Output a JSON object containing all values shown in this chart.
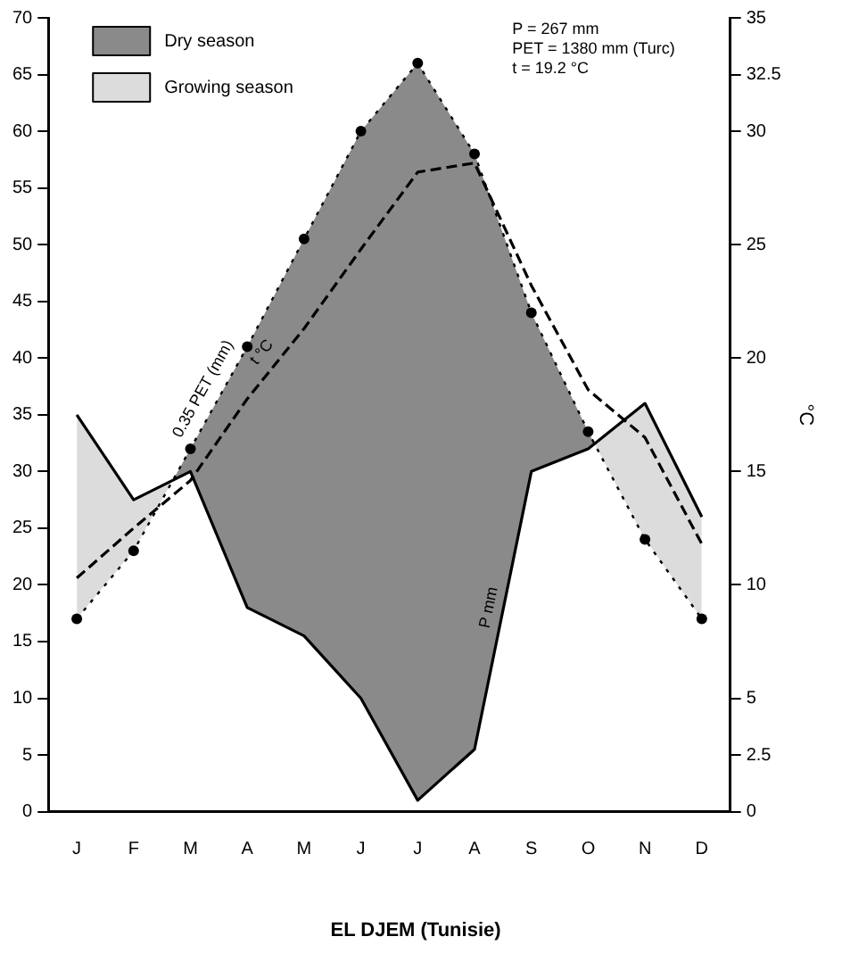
{
  "chart_data": {
    "type": "line",
    "title": "EL DJEM (Tunisie)",
    "y2label": "°C",
    "categories": [
      "J",
      "F",
      "M",
      "A",
      "M",
      "J",
      "J",
      "A",
      "S",
      "O",
      "N",
      "D"
    ],
    "series": [
      {
        "name": "P mm",
        "color": "#000000",
        "values": [
          35,
          27.5,
          30,
          18,
          15.5,
          10,
          1,
          5.5,
          30,
          32,
          36,
          26
        ],
        "line_style": "solid",
        "marker": "none"
      },
      {
        "name": "t °C",
        "color": "#000000",
        "axis": "y2",
        "values": [
          10.3,
          12.5,
          14.6,
          18.2,
          21.3,
          24.8,
          28.2,
          28.6,
          23.2,
          18.6,
          16.5,
          11.8
        ],
        "line_style": "dashed",
        "marker": "none"
      },
      {
        "name": "0.35 PET (mm)",
        "color": "#000000",
        "values": [
          17,
          23,
          32,
          41,
          50.5,
          60,
          66,
          58,
          44,
          33.5,
          24,
          17
        ],
        "line_style": "dotted",
        "marker": "circle"
      },
      {
        "name": "Dry season",
        "type": "area",
        "color": "#8a8a8a",
        "values": [
          null,
          null,
          null,
          null,
          null,
          null,
          null,
          null,
          null,
          null,
          null,
          null
        ],
        "lower": [
          null,
          27.5,
          30,
          18,
          15.5,
          10,
          1,
          5.5,
          30,
          32,
          36,
          null
        ],
        "upper": [
          null,
          23,
          32,
          41,
          50.5,
          60,
          66,
          58,
          44,
          33.5,
          24,
          null
        ]
      },
      {
        "name": "Growing season",
        "type": "area",
        "color": "#dcdcdc",
        "values": [
          null,
          null,
          null,
          null,
          null,
          null,
          null,
          null,
          null,
          null,
          null,
          null
        ],
        "lower": [
          17,
          23,
          32,
          null,
          null,
          null,
          null,
          null,
          null,
          33.5,
          24,
          17
        ],
        "upper": [
          35,
          27.5,
          30,
          null,
          null,
          null,
          null,
          null,
          null,
          32,
          36,
          26
        ]
      }
    ],
    "ylim": [
      0,
      70
    ],
    "yticks": [
      0,
      5,
      10,
      15,
      20,
      25,
      30,
      35,
      40,
      45,
      50,
      55,
      60,
      65,
      70
    ],
    "y2lim": [
      0,
      35
    ],
    "y2ticks": [
      0,
      2.5,
      5,
      10,
      15,
      20,
      25,
      30,
      32.5,
      35
    ],
    "annotations": [
      "P = 267 mm",
      "PET = 1380 mm (Turc)",
      "t = 19.2 °C"
    ],
    "legend": "top left",
    "grid": false
  }
}
